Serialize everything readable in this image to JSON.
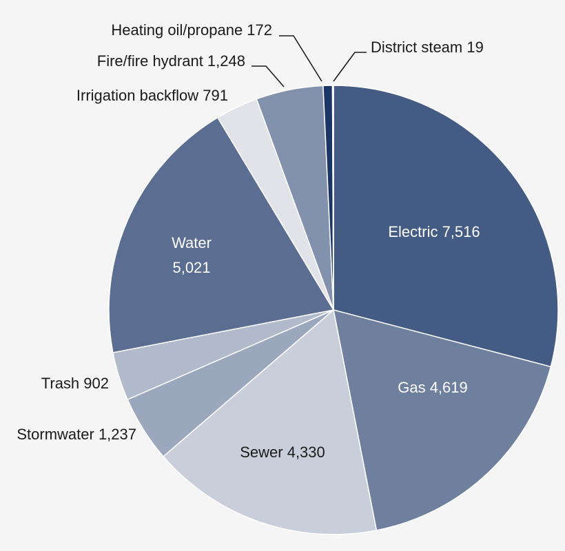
{
  "chart_data": {
    "type": "pie",
    "title": "",
    "start_angle_deg": 0,
    "direction": "clockwise",
    "slices": [
      {
        "label": "Electric",
        "value": 7516,
        "display": "7,516",
        "color": "#445b84",
        "text_color": "#ffffff",
        "label_mode": "inside"
      },
      {
        "label": "Gas",
        "value": 4619,
        "display": "4,619",
        "color": "#6f809f",
        "text_color": "#ffffff",
        "label_mode": "inside"
      },
      {
        "label": "Sewer",
        "value": 4330,
        "display": "4,330",
        "color": "#c9cfda",
        "text_color": "#1a1a1a",
        "label_mode": "inside"
      },
      {
        "label": "Stormwater",
        "value": 1237,
        "display": "1,237",
        "color": "#9aa7bd",
        "text_color": "#1a1a1a",
        "label_mode": "outside"
      },
      {
        "label": "Trash",
        "value": 902,
        "display": "902",
        "color": "#b1bacb",
        "text_color": "#1a1a1a",
        "label_mode": "outside"
      },
      {
        "label": "Water",
        "value": 5021,
        "display": "5,021",
        "color": "#5b6d90",
        "text_color": "#ffffff",
        "label_mode": "inside-stacked"
      },
      {
        "label": "Irrigation backflow",
        "value": 791,
        "display": "791",
        "color": "#e1e3e8",
        "text_color": "#1a1a1a",
        "label_mode": "outside"
      },
      {
        "label": "Fire/fire hydrant",
        "value": 1248,
        "display": "1,248",
        "color": "#8292ad",
        "text_color": "#1a1a1a",
        "label_mode": "leader"
      },
      {
        "label": "Heating oil/propane",
        "value": 172,
        "display": "172",
        "color": "#1b3566",
        "text_color": "#1a1a1a",
        "label_mode": "leader"
      },
      {
        "label": "District steam",
        "value": 19,
        "display": "19",
        "color": "#1b3566",
        "text_color": "#1a1a1a",
        "label_mode": "leader"
      }
    ]
  }
}
